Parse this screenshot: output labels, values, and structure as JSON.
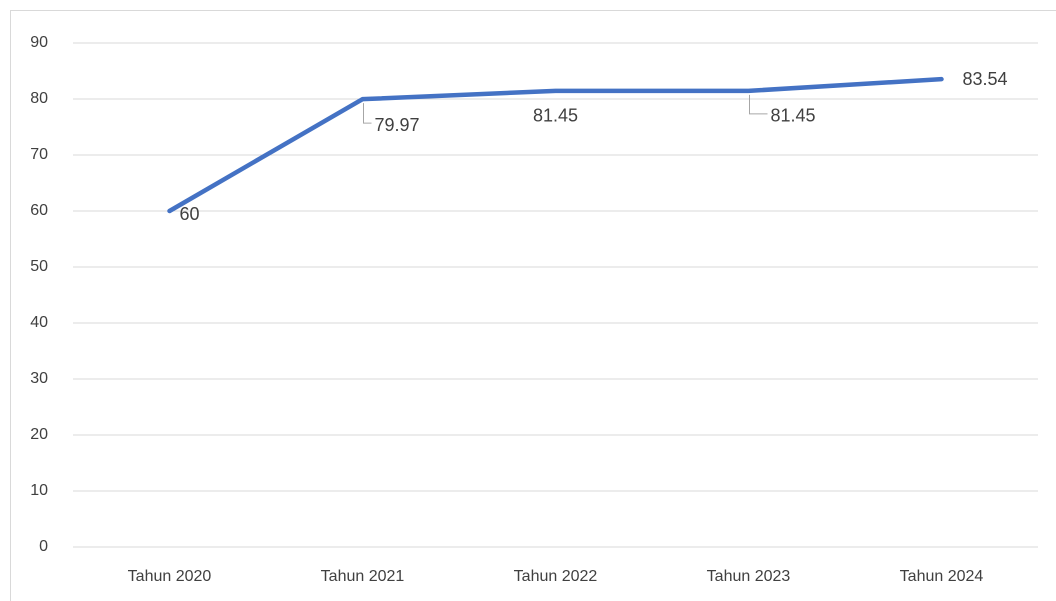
{
  "chart_data": {
    "type": "line",
    "categories": [
      "Tahun 2020",
      "Tahun 2021",
      "Tahun 2022",
      "Tahun 2023",
      "Tahun 2024"
    ],
    "values": [
      60,
      79.97,
      81.45,
      81.45,
      83.54
    ],
    "color": "#4472c4",
    "ylim": [
      0,
      90
    ],
    "yticks": [
      0,
      10,
      20,
      30,
      40,
      50,
      60,
      70,
      80,
      90
    ],
    "grid": true
  }
}
